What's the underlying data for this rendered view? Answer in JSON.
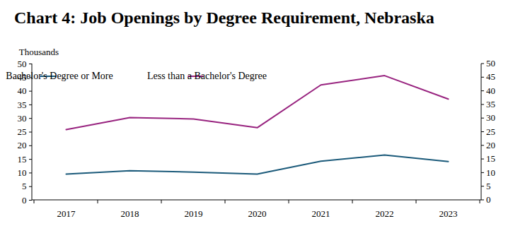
{
  "chart_data": {
    "type": "line",
    "title": "Chart 4: Job Openings by Degree Requirement, Nebraska",
    "y_label": "Thousands",
    "categories": [
      "2017",
      "2018",
      "2019",
      "2020",
      "2021",
      "2022",
      "2023"
    ],
    "series": [
      {
        "name": "Bachelor's Degree or More",
        "color": "#1b5a7a",
        "values": [
          9.6,
          10.8,
          10.3,
          9.6,
          14.3,
          16.6,
          14.2
        ]
      },
      {
        "name": "Less than a Bachelor's Degree",
        "color": "#98237f",
        "values": [
          25.9,
          30.3,
          29.8,
          26.6,
          42.3,
          45.7,
          37.1
        ]
      }
    ],
    "ylim": [
      0,
      50
    ],
    "yticks": [
      0,
      5,
      10,
      15,
      20,
      25,
      30,
      35,
      40,
      45,
      50
    ],
    "y2lim": [
      0,
      50
    ],
    "y2ticks": [
      0,
      5,
      10,
      15,
      20,
      25,
      30,
      35,
      40,
      45,
      50
    ],
    "grid": false,
    "legend": "top-left"
  }
}
